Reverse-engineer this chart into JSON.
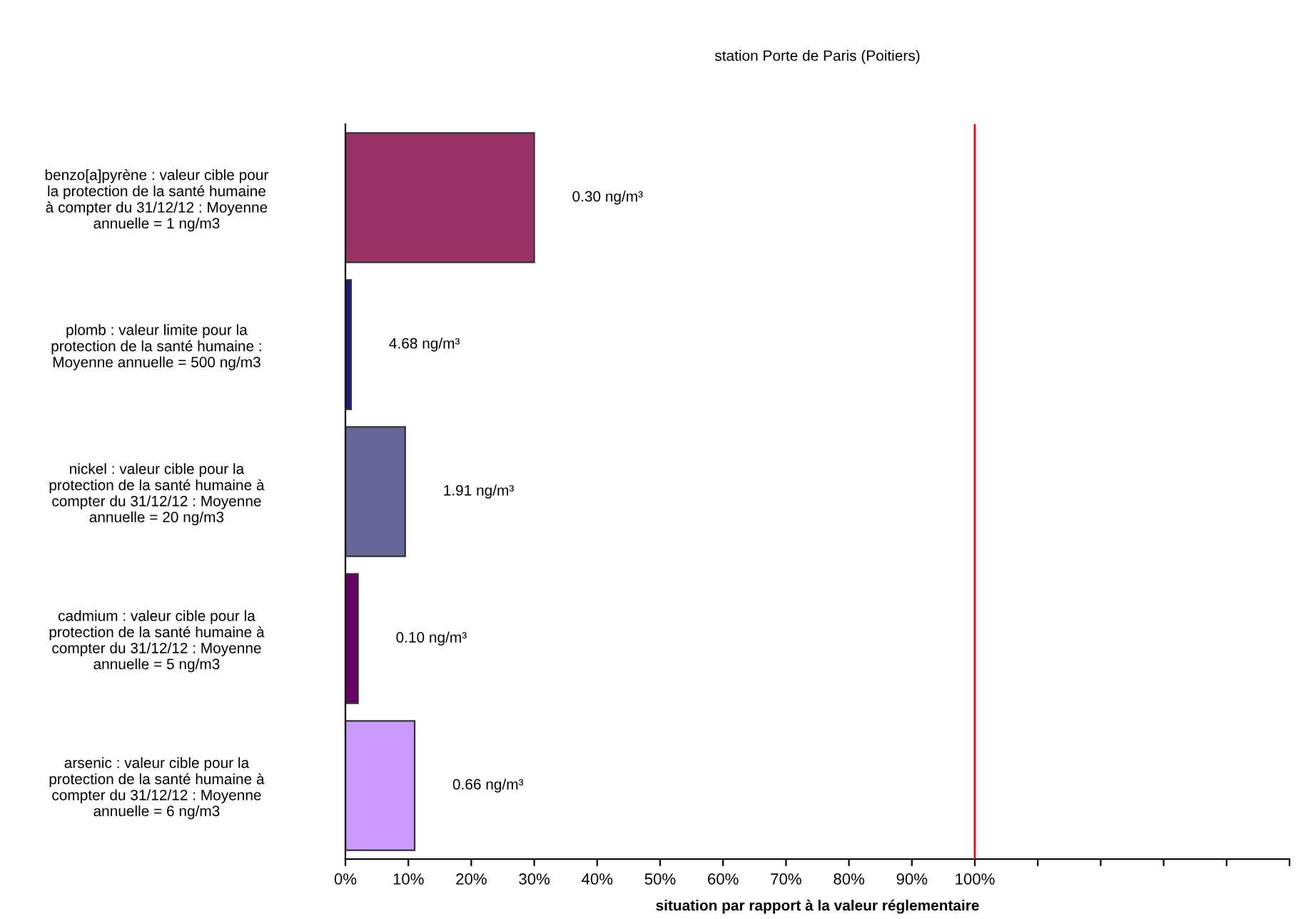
{
  "chart_data": {
    "type": "bar",
    "orientation": "horizontal",
    "title": "station Porte de Paris (Poitiers)",
    "xlabel": "situation par rapport à la valeur réglementaire",
    "categories": [
      "benzo[a]pyrène : valeur cible pour\nla protection de la santé humaine\nà compter du 31/12/12 : Moyenne\nannuelle = 1 ng/m3",
      "plomb : valeur limite pour la\nprotection de la santé humaine :\nMoyenne annuelle = 500 ng/m3",
      "nickel : valeur cible pour la\nprotection de la santé humaine à\ncompter du 31/12/12 : Moyenne\nannuelle = 20 ng/m3",
      "cadmium : valeur cible pour la\nprotection de la santé humaine à\ncompter du 31/12/12 : Moyenne\nannuelle = 5 ng/m3",
      "arsenic : valeur cible pour la\nprotection de la santé humaine à\ncompter du 31/12/12 : Moyenne\nannuelle = 6 ng/m3"
    ],
    "values": [
      30,
      0.9,
      9.5,
      2,
      11
    ],
    "colors": [
      "#993366",
      "#1a1a80",
      "#666699",
      "#660066",
      "#cc99ff"
    ],
    "annotations": [
      {
        "text": "0.30 ng/m³",
        "x": 30,
        "y": "benzo[a]pyrène : valeur cible pour\nla protection de la santé humaine\nà compter du 31/12/12 : Moyenne\nannuelle = 1 ng/m3"
      },
      {
        "text": "4.68 ng/m³",
        "x": 0.9,
        "y": "plomb : valeur limite pour la\nprotection de la santé humaine :\nMoyenne annuelle = 500 ng/m3"
      },
      {
        "text": "1.91 ng/m³",
        "x": 9.5,
        "y": "nickel : valeur cible pour la\nprotection de la santé humaine à\ncompter du 31/12/12 : Moyenne\nannuelle = 20 ng/m3"
      },
      {
        "text": "0.10 ng/m³",
        "x": 2,
        "y": "cadmium : valeur cible pour la\nprotection de la santé humaine à\ncompter du 31/12/12 : Moyenne\nannuelle = 5 ng/m3"
      },
      {
        "text": "0.66 ng/m³",
        "x": 11,
        "y": "arsenic : valeur cible pour la\nprotection de la santé humaine à\ncompter du 31/12/12 : Moyenne\nannuelle = 6 ng/m3"
      }
    ],
    "xlim": [
      0,
      150
    ],
    "xticks": [
      {
        "value": 0,
        "label": "0%"
      },
      {
        "value": 10,
        "label": "10%"
      },
      {
        "value": 20,
        "label": "20%"
      },
      {
        "value": 30,
        "label": "30%"
      },
      {
        "value": 40,
        "label": "40%"
      },
      {
        "value": 50,
        "label": "50%"
      },
      {
        "value": 60,
        "label": "60%"
      },
      {
        "value": 70,
        "label": "70%"
      },
      {
        "value": 80,
        "label": "80%"
      },
      {
        "value": 90,
        "label": "90%"
      },
      {
        "value": 100,
        "label": "100%"
      },
      {
        "value": 110,
        "label": null
      },
      {
        "value": 120,
        "label": null
      },
      {
        "value": 130,
        "label": null
      },
      {
        "value": 140,
        "label": null
      },
      {
        "value": 150,
        "label": null
      }
    ],
    "ref_lines": [
      {
        "axis": "x",
        "value": 100,
        "color": "#ff0000"
      }
    ],
    "grid": false,
    "legend": false
  }
}
